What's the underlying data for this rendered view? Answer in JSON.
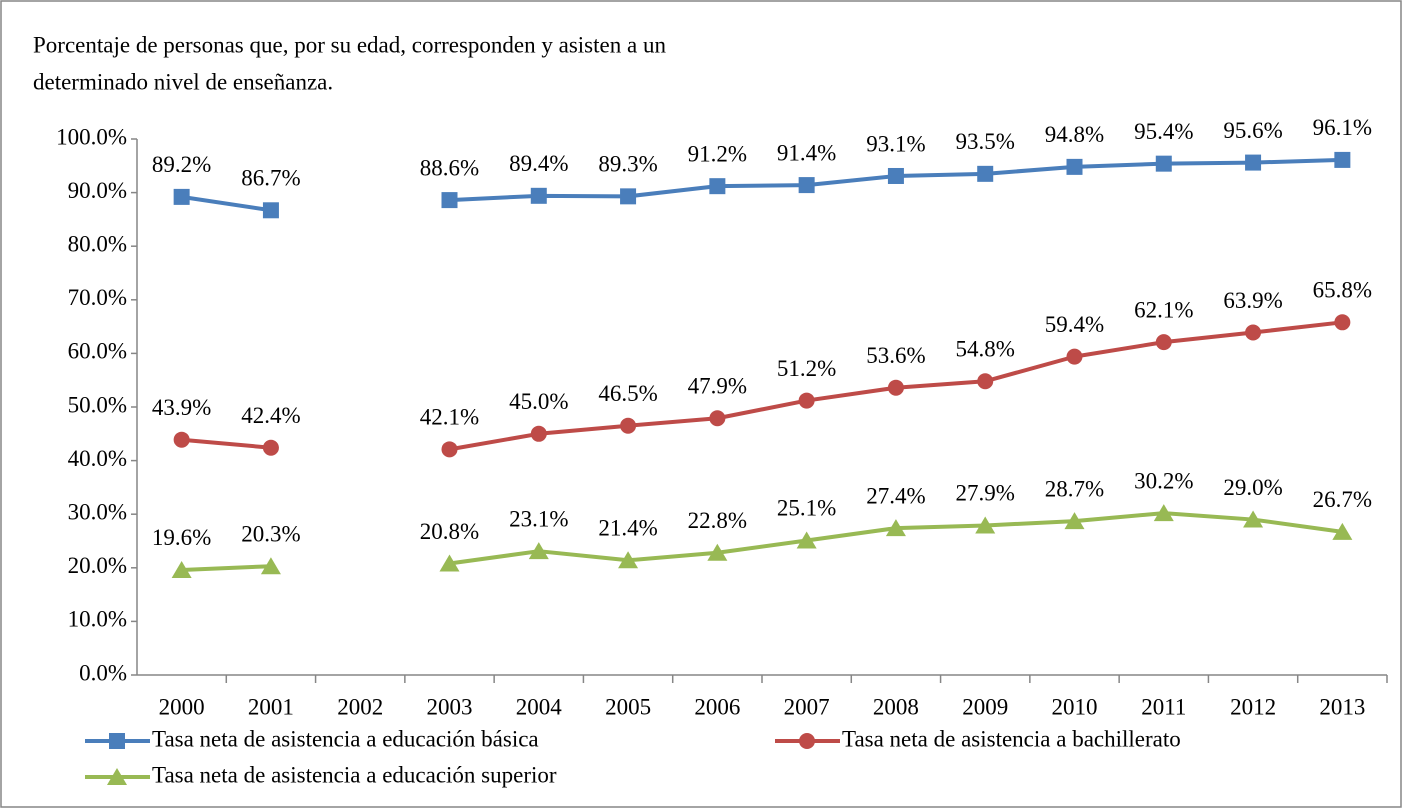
{
  "chart_data": {
    "type": "line",
    "title": [
      "Porcentaje de personas que, por su edad, corresponden y asisten a un",
      "determinado nivel de enseñanza."
    ],
    "categories": [
      "2000",
      "2001",
      "2002",
      "2003",
      "2004",
      "2005",
      "2006",
      "2007",
      "2008",
      "2009",
      "2010",
      "2011",
      "2012",
      "2013"
    ],
    "ylim": [
      0,
      100
    ],
    "yticks": [
      {
        "value": 0,
        "label": "0.0%"
      },
      {
        "value": 10,
        "label": "10.0%"
      },
      {
        "value": 20,
        "label": "20.0%"
      },
      {
        "value": 30,
        "label": "30.0%"
      },
      {
        "value": 40,
        "label": "40.0%"
      },
      {
        "value": 50,
        "label": "50.0%"
      },
      {
        "value": 60,
        "label": "60.0%"
      },
      {
        "value": 70,
        "label": "70.0%"
      },
      {
        "value": 80,
        "label": "80.0%"
      },
      {
        "value": 90,
        "label": "90.0%"
      },
      {
        "value": 100,
        "label": "100.0%"
      }
    ],
    "grid": false,
    "series": [
      {
        "name": "Tasa neta de asistencia a educación básica",
        "color": "#4a7ebb",
        "marker": "square",
        "values": [
          89.2,
          86.7,
          null,
          88.6,
          89.4,
          89.3,
          91.2,
          91.4,
          93.1,
          93.5,
          94.8,
          95.4,
          95.6,
          96.1
        ],
        "value_labels": [
          "89.2%",
          "86.7%",
          null,
          "88.6%",
          "89.4%",
          "89.3%",
          "91.2%",
          "91.4%",
          "93.1%",
          "93.5%",
          "94.8%",
          "95.4%",
          "95.6%",
          "96.1%"
        ]
      },
      {
        "name": "Tasa neta de asistencia a bachillerato",
        "color": "#be4b48",
        "marker": "circle",
        "values": [
          43.9,
          42.4,
          null,
          42.1,
          45.0,
          46.5,
          47.9,
          51.2,
          53.6,
          54.8,
          59.4,
          62.1,
          63.9,
          65.8
        ],
        "value_labels": [
          "43.9%",
          "42.4%",
          null,
          "42.1%",
          "45.0%",
          "46.5%",
          "47.9%",
          "51.2%",
          "53.6%",
          "54.8%",
          "59.4%",
          "62.1%",
          "63.9%",
          "65.8%"
        ]
      },
      {
        "name": "Tasa neta de asistencia a educación superior",
        "color": "#98b954",
        "marker": "triangle",
        "values": [
          19.6,
          20.3,
          null,
          20.8,
          23.1,
          21.4,
          22.8,
          25.1,
          27.4,
          27.9,
          28.7,
          30.2,
          29.0,
          26.7
        ],
        "value_labels": [
          "19.6%",
          "20.3%",
          null,
          "20.8%",
          "23.1%",
          "21.4%",
          "22.8%",
          "25.1%",
          "27.4%",
          "27.9%",
          "28.7%",
          "30.2%",
          "29.0%",
          "26.7%"
        ]
      }
    ]
  }
}
